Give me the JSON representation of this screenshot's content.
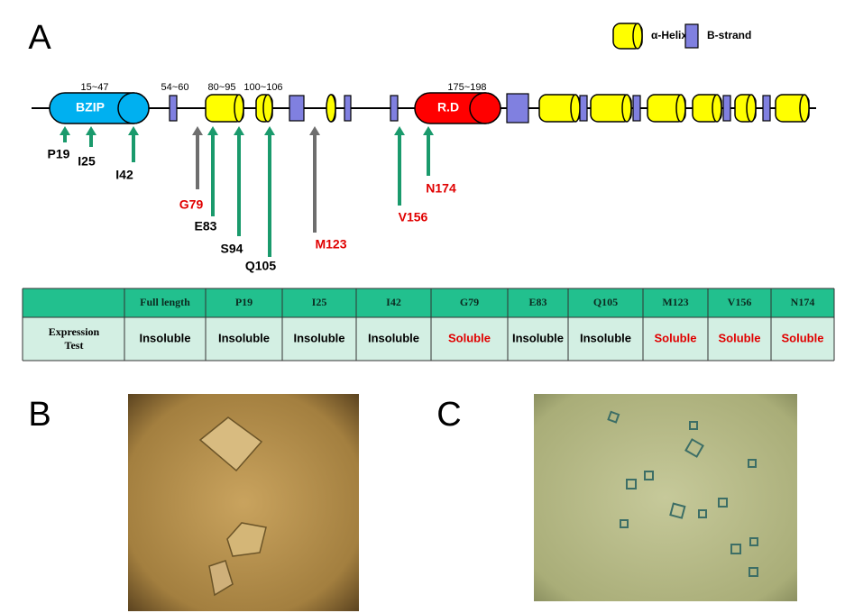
{
  "panels": {
    "a": "A",
    "b": "B",
    "c": "C"
  },
  "legend": {
    "helix": "α-Helix",
    "strand": "B-strand"
  },
  "domains": [
    {
      "label": "BZIP",
      "range": "15~47",
      "color": "#00b0f0"
    },
    {
      "label": "R.D",
      "range": "175~198",
      "color": "#ff0000"
    }
  ],
  "ranges": [
    "54~60",
    "80~95",
    "100~106"
  ],
  "mutations": [
    {
      "label": "P19",
      "color": "#000000",
      "arrow_color": "#1a9a6c"
    },
    {
      "label": "I25",
      "color": "#000000",
      "arrow_color": "#1a9a6c"
    },
    {
      "label": "I42",
      "color": "#000000",
      "arrow_color": "#1a9a6c"
    },
    {
      "label": "G79",
      "color": "#e00000",
      "arrow_color": "#6e6e6e"
    },
    {
      "label": "E83",
      "color": "#000000",
      "arrow_color": "#1a9a6c"
    },
    {
      "label": "S94",
      "color": "#000000",
      "arrow_color": "#1a9a6c"
    },
    {
      "label": "Q105",
      "color": "#000000",
      "arrow_color": "#1a9a6c"
    },
    {
      "label": "M123",
      "color": "#e00000",
      "arrow_color": "#6e6e6e"
    },
    {
      "label": "V156",
      "color": "#e00000",
      "arrow_color": "#1a9a6c"
    },
    {
      "label": "N174",
      "color": "#e00000",
      "arrow_color": "#1a9a6c"
    }
  ],
  "table": {
    "header": [
      "Full length",
      "P19",
      "I25",
      "I42",
      "G79",
      "E83",
      "Q105",
      "M123",
      "V156",
      "N174"
    ],
    "row_label": "Expression Test",
    "rows": [
      [
        "Insoluble",
        "Insoluble",
        "Insoluble",
        "Insoluble",
        "Soluble",
        "Insoluble",
        "Insoluble",
        "Soluble",
        "Soluble",
        "Soluble"
      ]
    ],
    "cell_colors": [
      [
        "#000000",
        "#000000",
        "#000000",
        "#000000",
        "#e00000",
        "#000000",
        "#000000",
        "#e00000",
        "#e00000",
        "#e00000"
      ]
    ]
  }
}
